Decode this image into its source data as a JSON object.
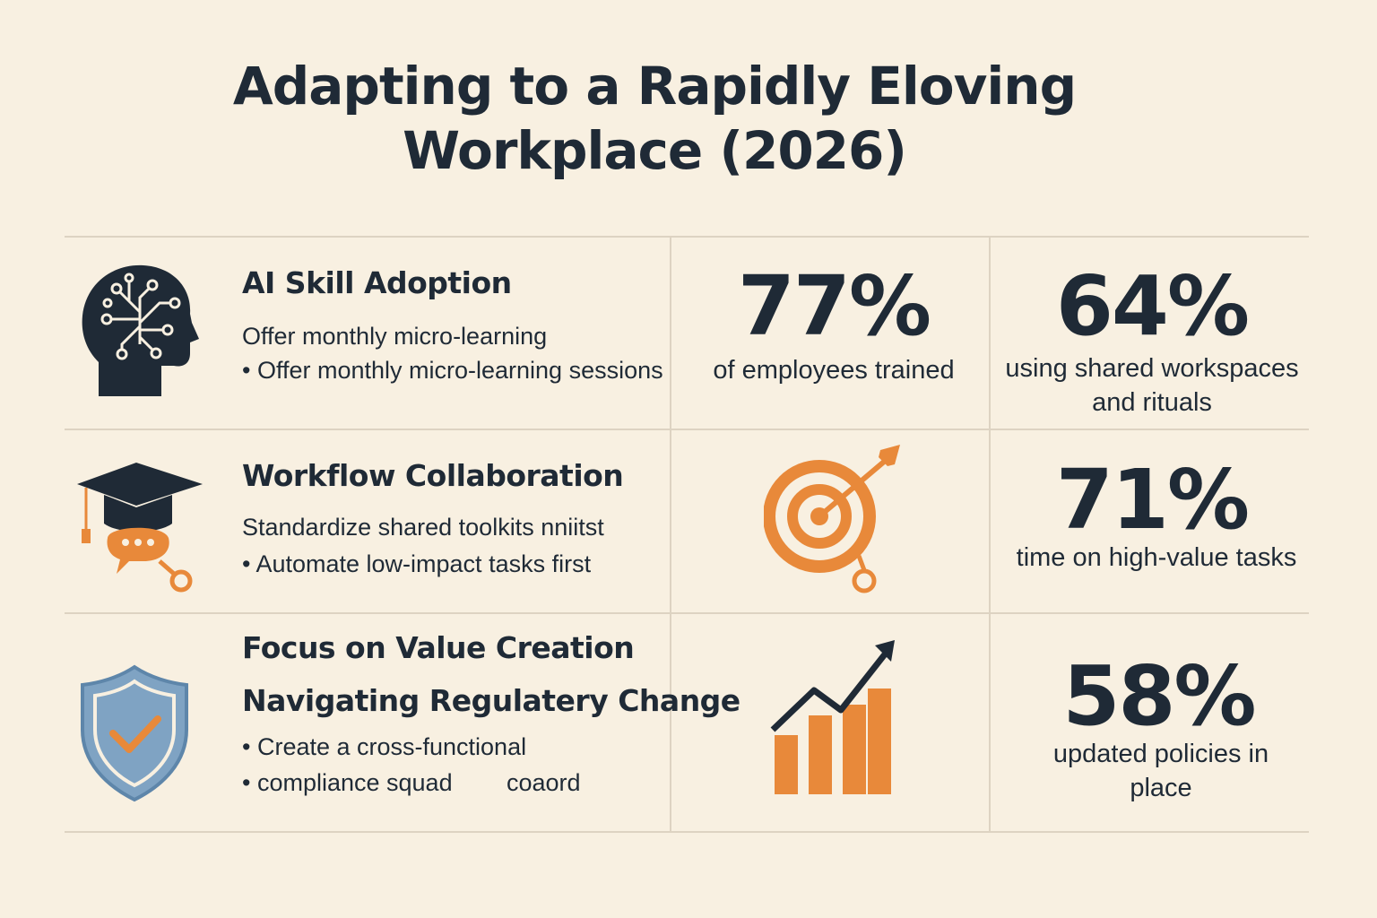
{
  "title": {
    "line1": "Adapting to a Rapidly Eloving",
    "line2": "Workplace (2026)"
  },
  "rows": [
    {
      "heading": "AI Skill Adoption",
      "lines": [
        "Offer monthly micro-learning",
        "• Offer monthly micro-learning sessions"
      ],
      "icon": "brain-head-icon",
      "stat": {
        "value": "77%",
        "caption": "of employees trained"
      },
      "stat2": {
        "value": "64%",
        "caption_line1": "using shared workspaces",
        "caption_line2": "and rituals"
      }
    },
    {
      "heading": "Workflow Collaboration",
      "lines": [
        "Standardize shared toolkits nniitst",
        "•  Automate low-impact tasks first"
      ],
      "icon": "graduation-cap-icon",
      "center_icon": "target-icon",
      "stat2": {
        "value": "71%",
        "caption": "time on high-value tasks"
      }
    },
    {
      "heading": "Focus on Value Creation",
      "heading2": "Navigating Regulatery Change",
      "lines": [
        "• Create a cross-functional",
        "• compliance squad",
        "coaord"
      ],
      "icon": "shield-check-icon",
      "center_icon": "growth-chart-icon",
      "stat2": {
        "value": "58%",
        "caption_line1": "updated policies in",
        "caption_line2": "place"
      }
    }
  ],
  "colors": {
    "background": "#f8f0e1",
    "text": "#1f2a36",
    "accent": "#e8893a",
    "shield": "#7fa3c3"
  }
}
